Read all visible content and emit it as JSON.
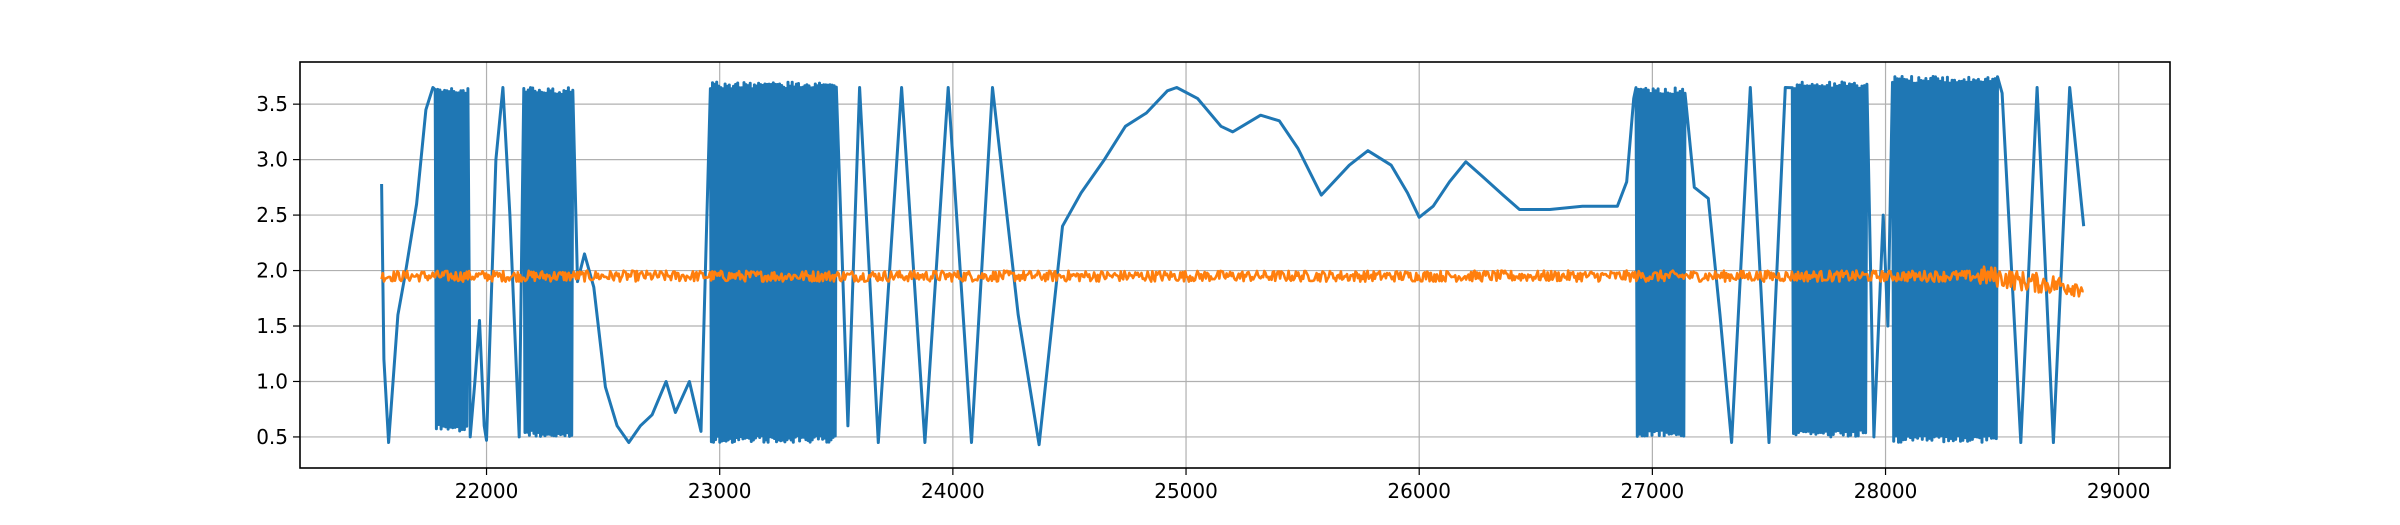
{
  "chart_data": {
    "type": "line",
    "title": "",
    "xlabel": "",
    "ylabel": "",
    "xlim": [
      21200,
      29220
    ],
    "ylim": [
      0.22,
      3.88
    ],
    "grid": true,
    "x_ticks": [
      22000,
      23000,
      24000,
      25000,
      26000,
      27000,
      28000,
      29000
    ],
    "y_ticks": [
      0.5,
      1.0,
      1.5,
      2.0,
      2.5,
      3.0,
      3.5
    ],
    "x_tick_labels": [
      "22000",
      "23000",
      "24000",
      "25000",
      "26000",
      "27000",
      "28000",
      "29000"
    ],
    "y_tick_labels": [
      "0.5",
      "1.0",
      "1.5",
      "2.0",
      "2.5",
      "3.0",
      "3.5"
    ],
    "series": [
      {
        "color": "#1f77b4",
        "points": [
          [
            21550,
            2.78
          ],
          [
            21560,
            1.2
          ],
          [
            21580,
            0.45
          ],
          [
            21620,
            1.6
          ],
          [
            21650,
            1.95
          ],
          [
            21700,
            2.6
          ],
          [
            21740,
            3.45
          ],
          [
            21770,
            3.65
          ],
          {
            "band": [
              21780,
              21920,
              0.55,
              3.65,
              14
            ]
          },
          [
            21930,
            0.5
          ],
          [
            21950,
            1.0
          ],
          [
            21970,
            1.55
          ],
          [
            21990,
            0.6
          ],
          [
            22000,
            0.47
          ],
          [
            22040,
            3.0
          ],
          [
            22070,
            3.65
          ],
          [
            22100,
            2.5
          ],
          [
            22140,
            0.5
          ],
          {
            "band": [
              22160,
              22370,
              0.5,
              3.65,
              22
            ]
          },
          [
            22390,
            1.9
          ],
          [
            22420,
            2.15
          ],
          [
            22460,
            1.85
          ],
          [
            22510,
            0.95
          ],
          [
            22560,
            0.6
          ],
          [
            22610,
            0.45
          ],
          [
            22660,
            0.6
          ],
          [
            22710,
            0.7
          ],
          [
            22770,
            1.0
          ],
          [
            22810,
            0.72
          ],
          [
            22870,
            1.0
          ],
          [
            22920,
            0.55
          ],
          {
            "band": [
              22960,
              23500,
              0.45,
              3.7,
              60
            ]
          },
          [
            23550,
            0.6
          ],
          [
            23600,
            3.65
          ],
          [
            23680,
            0.45
          ],
          [
            23780,
            3.65
          ],
          [
            23880,
            0.45
          ],
          [
            23980,
            3.65
          ],
          [
            24080,
            0.45
          ],
          [
            24170,
            3.65
          ],
          [
            24280,
            1.6
          ],
          [
            24370,
            0.43
          ],
          [
            24470,
            2.4
          ],
          [
            24550,
            2.7
          ],
          [
            24650,
            3.0
          ],
          [
            24740,
            3.3
          ],
          [
            24830,
            3.42
          ],
          [
            24920,
            3.62
          ],
          [
            24960,
            3.65
          ],
          [
            25050,
            3.55
          ],
          [
            25150,
            3.3
          ],
          [
            25200,
            3.25
          ],
          [
            25320,
            3.4
          ],
          [
            25400,
            3.35
          ],
          [
            25480,
            3.1
          ],
          [
            25580,
            2.68
          ],
          [
            25700,
            2.95
          ],
          [
            25780,
            3.08
          ],
          [
            25880,
            2.95
          ],
          [
            25950,
            2.7
          ],
          [
            26000,
            2.48
          ],
          [
            26060,
            2.58
          ],
          [
            26130,
            2.8
          ],
          [
            26200,
            2.98
          ],
          [
            26270,
            2.85
          ],
          [
            26360,
            2.68
          ],
          [
            26430,
            2.55
          ],
          [
            26560,
            2.55
          ],
          [
            26700,
            2.58
          ],
          [
            26850,
            2.58
          ],
          [
            26890,
            2.8
          ],
          [
            26920,
            3.55
          ],
          {
            "band": [
              26930,
              27140,
              0.5,
              3.65,
              20
            ]
          },
          [
            27180,
            2.75
          ],
          [
            27240,
            2.65
          ],
          [
            27290,
            1.6
          ],
          [
            27340,
            0.45
          ],
          [
            27420,
            3.65
          ],
          [
            27500,
            0.45
          ],
          [
            27570,
            3.65
          ],
          {
            "band": [
              27600,
              27920,
              0.5,
              3.7,
              30
            ]
          },
          [
            27950,
            0.5
          ],
          [
            27990,
            2.5
          ],
          [
            28010,
            1.5
          ],
          {
            "band": [
              28030,
              28480,
              0.45,
              3.75,
              44
            ]
          },
          [
            28500,
            3.6
          ],
          [
            28580,
            0.45
          ],
          [
            28650,
            3.65
          ],
          [
            28720,
            0.45
          ],
          [
            28790,
            3.65
          ],
          [
            28850,
            2.4
          ]
        ]
      },
      {
        "color": "#ff7f0e",
        "points": [
          [
            21550,
            1.95
          ],
          [
            28450,
            1.95
          ],
          [
            28600,
            1.9
          ],
          [
            28850,
            1.85
          ]
        ],
        "noise": 0.05
      }
    ]
  }
}
